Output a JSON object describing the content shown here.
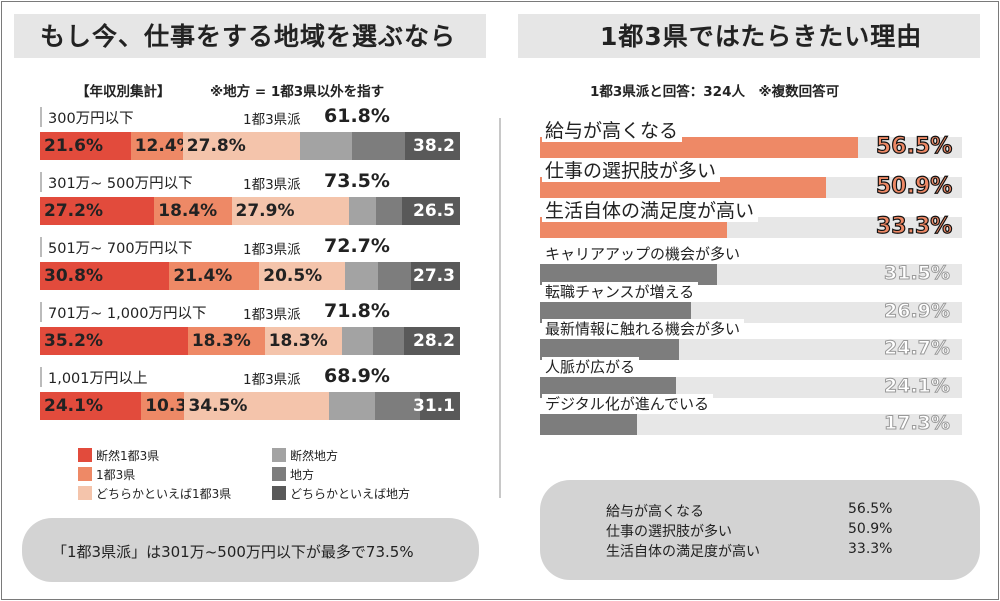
{
  "colors": {
    "strong_metro": "#e24b3c",
    "metro": "#ee8966",
    "lean_metro": "#f4c4ab",
    "strong_local": "#a3a3a3",
    "local": "#7d7d7d",
    "lean_local": "#595959",
    "panel_gray": "#e6e6e6"
  },
  "left": {
    "title": "もし今、仕事をする地域を選ぶなら",
    "subtitle_left": "【年収別集計】",
    "subtitle_right": "※地方 = 1都3県以外を指す",
    "summary": "「1都3県派」は301万~500万円以下が最多で73.5%"
  },
  "right": {
    "title": "1都3県ではたらきたい理由",
    "subtitle": "1都3県派と回答：324人　※複数回答可",
    "summary_rows": [
      {
        "label": "給与が高くなる",
        "value": "56.5%"
      },
      {
        "label": "仕事の選択肢が多い",
        "value": "50.9%"
      },
      {
        "label": "生活自体の満足度が高い",
        "value": "33.3%"
      }
    ]
  },
  "chart_data": [
    {
      "type": "bar",
      "stacked": true,
      "orientation": "horizontal",
      "title": "もし今、仕事をする地域を選ぶなら",
      "group_tag": "1都3県派",
      "categories": [
        "300万円以下",
        "301万~ 500万円以下",
        "501万~ 700万円以下",
        "701万~ 1,000万円以下",
        "1,001万円以上"
      ],
      "category_totals": [
        "61.8%",
        "73.5%",
        "72.7%",
        "71.8%",
        "68.9%"
      ],
      "totals_values": [
        61.8,
        73.5,
        72.7,
        71.8,
        68.9
      ],
      "series": [
        {
          "name": "断然1都3県",
          "values": [
            21.6,
            27.2,
            30.8,
            35.2,
            24.1
          ],
          "labels": [
            "21.6%",
            "27.2%",
            "30.8%",
            "35.2%",
            "24.1%"
          ]
        },
        {
          "name": "1都3県",
          "values": [
            12.4,
            18.4,
            21.4,
            18.3,
            10.3
          ],
          "labels": [
            "12.4%",
            "18.4%",
            "21.4%",
            "18.3%",
            "10.3%"
          ]
        },
        {
          "name": "どちらかといえば1都3県",
          "values": [
            27.8,
            27.9,
            20.5,
            18.3,
            34.5
          ],
          "labels": [
            "27.8%",
            "27.9%",
            "20.5%",
            "18.3%",
            "34.5%"
          ]
        },
        {
          "name": "断然地方",
          "values": [
            12.6,
            6.4,
            7.8,
            7.4,
            10.8
          ]
        },
        {
          "name": "地方",
          "values": [
            12.6,
            6.4,
            7.8,
            7.4,
            10.8
          ]
        },
        {
          "name": "どちらかといえば地方",
          "values": [
            13.0,
            13.7,
            11.7,
            13.4,
            9.5
          ]
        }
      ],
      "local_totals": [
        "38.2",
        "26.5",
        "27.3",
        "28.2",
        "31.1"
      ],
      "legend_order": [
        0,
        3,
        1,
        4,
        2,
        5
      ],
      "xlim": [
        0,
        100
      ]
    },
    {
      "type": "bar",
      "orientation": "horizontal",
      "title": "1都3県ではたらきたい理由",
      "categories": [
        "給与が高くなる",
        "仕事の選択肢が多い",
        "生活自体の満足度が高い",
        "キャリアアップの機会が多い",
        "転職チャンスが増える",
        "最新情報に触れる機会が多い",
        "人脈が広がる",
        "デジタル化が進んでいる"
      ],
      "values": [
        56.5,
        50.9,
        33.3,
        31.5,
        26.9,
        24.7,
        24.1,
        17.3
      ],
      "value_labels": [
        "56.5%",
        "50.9%",
        "33.3%",
        "31.5%",
        "26.9%",
        "24.7%",
        "24.1%",
        "17.3%"
      ],
      "highlight_count": 3,
      "xlim": [
        0,
        75
      ]
    }
  ]
}
